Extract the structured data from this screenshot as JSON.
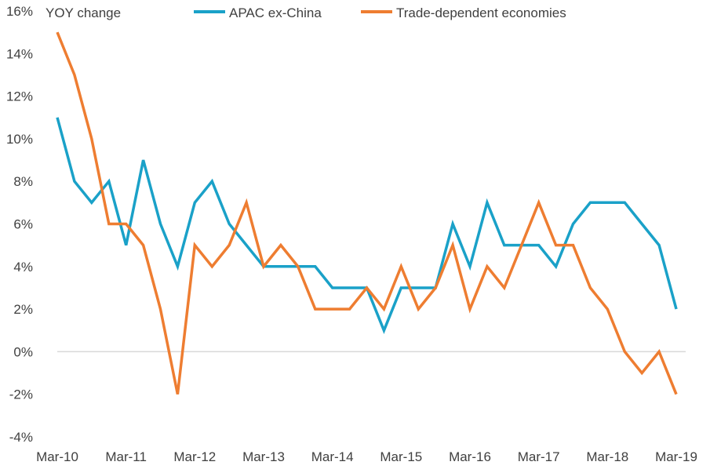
{
  "chart_data": {
    "type": "line",
    "ylabel": "YOY change",
    "ylim": [
      -4,
      16
    ],
    "yticks": [
      -4,
      -2,
      0,
      2,
      4,
      6,
      8,
      10,
      12,
      14,
      16
    ],
    "ytick_labels": [
      "-4%",
      "-2%",
      "0%",
      "2%",
      "4%",
      "6%",
      "8%",
      "10%",
      "12%",
      "14%",
      "16%"
    ],
    "x_tick_labels": [
      "Mar-10",
      "Mar-11",
      "Mar-12",
      "Mar-13",
      "Mar-14",
      "Mar-15",
      "Mar-16",
      "Mar-17",
      "Mar-18",
      "Mar-19"
    ],
    "x": [
      "Mar-10",
      "Jun-10",
      "Sep-10",
      "Dec-10",
      "Mar-11",
      "Jun-11",
      "Sep-11",
      "Dec-11",
      "Mar-12",
      "Jun-12",
      "Sep-12",
      "Dec-12",
      "Mar-13",
      "Jun-13",
      "Sep-13",
      "Dec-13",
      "Mar-14",
      "Jun-14",
      "Sep-14",
      "Dec-14",
      "Mar-15",
      "Jun-15",
      "Sep-15",
      "Dec-15",
      "Mar-16",
      "Jun-16",
      "Sep-16",
      "Dec-16",
      "Mar-17",
      "Jun-17",
      "Sep-17",
      "Dec-17",
      "Mar-18",
      "Jun-18",
      "Sep-18",
      "Dec-18",
      "Mar-19"
    ],
    "legend_position": "top",
    "grid": false,
    "series": [
      {
        "name": "APAC ex-China",
        "color": "#1aa1c8",
        "values": [
          11,
          8,
          7,
          8,
          5,
          9,
          6,
          4,
          7,
          8,
          6,
          5,
          4,
          4,
          4,
          4,
          3,
          3,
          3,
          1,
          3,
          3,
          3,
          6,
          4,
          7,
          5,
          5,
          5,
          4,
          6,
          7,
          7,
          7,
          6,
          5,
          2
        ]
      },
      {
        "name": "Trade-dependent economies",
        "color": "#ee7d31",
        "values": [
          15,
          13,
          10,
          6,
          6,
          5,
          2,
          -2,
          5,
          4,
          5,
          7,
          4,
          5,
          4,
          2,
          2,
          2,
          3,
          2,
          4,
          2,
          3,
          5,
          2,
          4,
          3,
          5,
          7,
          5,
          5,
          3,
          2,
          0,
          -1,
          0,
          -2
        ]
      }
    ]
  }
}
